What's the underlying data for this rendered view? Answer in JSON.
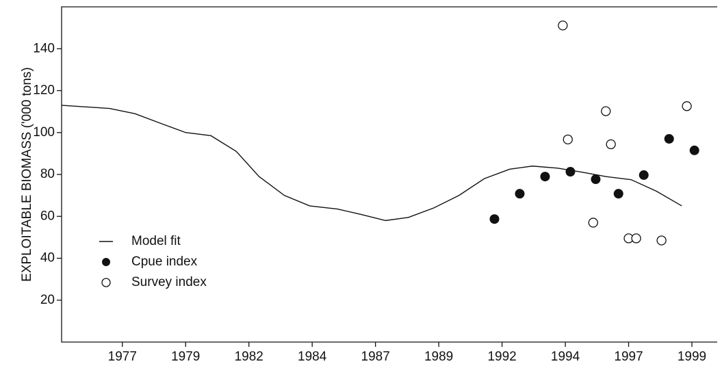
{
  "chart_data": {
    "type": "line-scatter",
    "y_label": "EXPLOITABLE BIOMASS ('000 tons)",
    "xlim": [
      1974.6,
      2000.5
    ],
    "ylim": [
      0,
      160
    ],
    "xticks": [
      {
        "value": 1977,
        "label": "1977"
      },
      {
        "value": 1979.5,
        "label": "1979"
      },
      {
        "value": 1982,
        "label": "1982"
      },
      {
        "value": 1984.5,
        "label": "1984"
      },
      {
        "value": 1987,
        "label": "1987"
      },
      {
        "value": 1989.5,
        "label": "1989"
      },
      {
        "value": 1992,
        "label": "1992"
      },
      {
        "value": 1994.5,
        "label": "1994"
      },
      {
        "value": 1997,
        "label": "1997"
      },
      {
        "value": 1999.5,
        "label": "1999"
      }
    ],
    "yticks": [
      20,
      40,
      60,
      80,
      100,
      120,
      140
    ],
    "series": [
      {
        "name": "Model fit",
        "kind": "line",
        "color": "#111111",
        "x": [
          1974.6,
          1976.5,
          1977.5,
          1978.6,
          1979.5,
          1980.5,
          1981.5,
          1982.4,
          1983.4,
          1984.4,
          1985.5,
          1986.4,
          1987.4,
          1988.3,
          1989.3,
          1990.3,
          1991.3,
          1992.3,
          1993.2,
          1994.2,
          1995.2,
          1996.1,
          1997.1,
          1998.1,
          1999.1
        ],
        "values": [
          113,
          111.5,
          109,
          104,
          100,
          98.5,
          91,
          79,
          70,
          65,
          63.5,
          61,
          58,
          59.5,
          64,
          70,
          78,
          82.5,
          84,
          83,
          81,
          79,
          77.5,
          72,
          65
        ]
      },
      {
        "name": "Cpue index",
        "kind": "filled",
        "color": "#111111",
        "x": [
          1991.7,
          1992.7,
          1993.7,
          1994.7,
          1995.7,
          1996.6,
          1997.6,
          1998.6,
          1999.6
        ],
        "values": [
          58.7,
          70.8,
          79,
          81.3,
          77.7,
          70.8,
          79.7,
          97,
          91.5
        ]
      },
      {
        "name": "Survey index",
        "kind": "open",
        "color": "#111111",
        "x": [
          1994.4,
          1994.6,
          1995.6,
          1996.1,
          1996.3,
          1997.0,
          1997.3,
          1998.3,
          1999.3
        ],
        "values": [
          151.1,
          96.7,
          57,
          110.2,
          94.4,
          49.5,
          49.5,
          48.5,
          112.6
        ]
      }
    ]
  }
}
